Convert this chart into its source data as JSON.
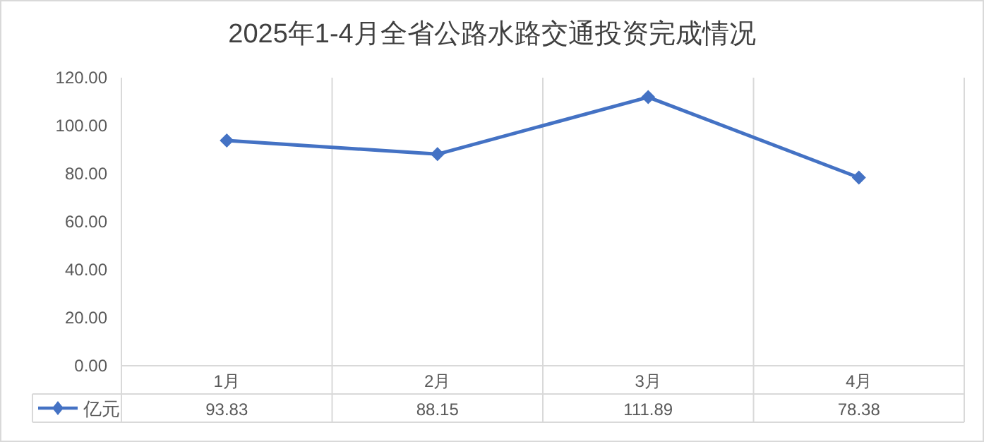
{
  "chart_data": {
    "type": "line",
    "title": "2025年1-4月全省公路水路交通投资完成情况",
    "categories": [
      "1月",
      "2月",
      "3月",
      "4月"
    ],
    "series": [
      {
        "name": "亿元",
        "color": "#4472c4",
        "values": [
          93.83,
          88.15,
          111.89,
          78.38
        ]
      }
    ],
    "ylim": [
      0,
      120
    ],
    "yticks": [
      {
        "value": 0,
        "label": "0.00"
      },
      {
        "value": 20,
        "label": "20.00"
      },
      {
        "value": 40,
        "label": "40.00"
      },
      {
        "value": 60,
        "label": "60.00"
      },
      {
        "value": 80,
        "label": "80.00"
      },
      {
        "value": 100,
        "label": "100.00"
      },
      {
        "value": 120,
        "label": "120.00"
      }
    ],
    "value_labels": [
      "93.83",
      "88.15",
      "111.89",
      "78.38"
    ],
    "grid": "x",
    "legend": "bottom left",
    "marker": "diamond",
    "line_style": "solid"
  }
}
